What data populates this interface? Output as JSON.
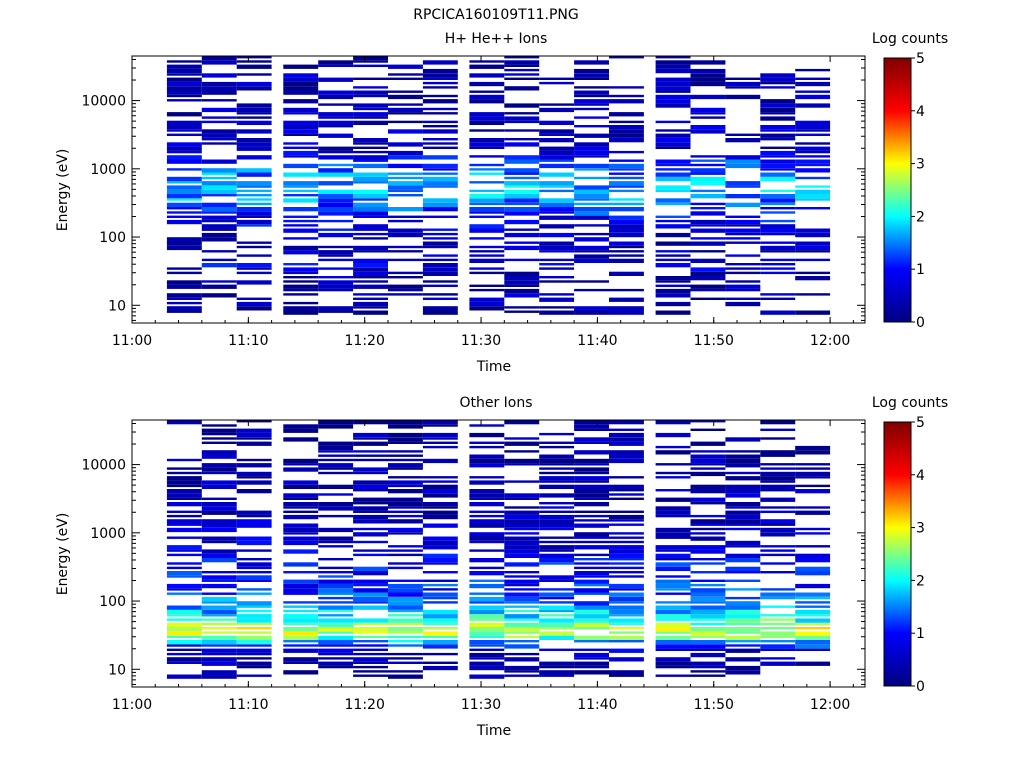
{
  "figure_title": "RPCICA160109T11.PNG",
  "colorbar_label": "Log counts",
  "colorbar_ticks": [
    "0",
    "1",
    "2",
    "3",
    "4",
    "5"
  ],
  "colormap": [
    "#000080",
    "#0000ff",
    "#00ffff",
    "#ffff00",
    "#ff0000",
    "#800000"
  ],
  "time_ticks": [
    "11:00",
    "11:10",
    "11:20",
    "11:30",
    "11:40",
    "11:50",
    "12:00"
  ],
  "chart_data": [
    {
      "type": "heatmap",
      "title": "H+ He++ Ions",
      "xlabel": "Time",
      "ylabel": "Energy (eV)",
      "y_scale": "log",
      "xlim": [
        "11:00",
        "12:03"
      ],
      "ylim": [
        5.5,
        45000
      ],
      "yticks": [
        10,
        100,
        1000,
        10000
      ],
      "ytick_labels": [
        "10",
        "100",
        "1000",
        "10000"
      ],
      "clim": [
        0,
        5
      ],
      "time_bins": [
        "11:03",
        "11:06",
        "11:09",
        "11:13",
        "11:16",
        "11:19",
        "11:22",
        "11:25",
        "11:29",
        "11:32",
        "11:35",
        "11:38",
        "11:41",
        "11:45",
        "11:48",
        "11:51",
        "11:54",
        "11:57"
      ],
      "profile": [
        [
          30000,
          0.3
        ],
        [
          15000,
          0.35
        ],
        [
          8000,
          0.4
        ],
        [
          4000,
          0.45
        ],
        [
          2000,
          0.5
        ],
        [
          1200,
          1.2
        ],
        [
          700,
          1.6
        ],
        [
          450,
          1.7
        ],
        [
          300,
          1.4
        ],
        [
          200,
          1.0
        ],
        [
          130,
          0.7
        ],
        [
          90,
          0.5
        ],
        [
          60,
          0.4
        ],
        [
          40,
          0.8
        ],
        [
          30,
          0.5
        ],
        [
          20,
          0.35
        ],
        [
          12,
          0.3
        ],
        [
          8,
          0.25
        ]
      ],
      "density": 0.55,
      "seed": 11
    },
    {
      "type": "heatmap",
      "title": "Other Ions",
      "xlabel": "Time",
      "ylabel": "Energy (eV)",
      "y_scale": "log",
      "xlim": [
        "11:00",
        "12:03"
      ],
      "ylim": [
        5.5,
        45000
      ],
      "yticks": [
        10,
        100,
        1000,
        10000
      ],
      "ytick_labels": [
        "10",
        "100",
        "1000",
        "10000"
      ],
      "clim": [
        0,
        5
      ],
      "time_bins": [
        "11:03",
        "11:06",
        "11:09",
        "11:13",
        "11:16",
        "11:19",
        "11:22",
        "11:25",
        "11:29",
        "11:32",
        "11:35",
        "11:38",
        "11:41",
        "11:45",
        "11:48",
        "11:51",
        "11:54",
        "11:57"
      ],
      "profile": [
        [
          20000,
          0.3
        ],
        [
          10000,
          0.3
        ],
        [
          5000,
          0.35
        ],
        [
          3000,
          0.4
        ],
        [
          2000,
          0.45
        ],
        [
          1000,
          0.55
        ],
        [
          600,
          0.7
        ],
        [
          350,
          0.9
        ],
        [
          200,
          1.0
        ],
        [
          120,
          1.3
        ],
        [
          80,
          1.6
        ],
        [
          55,
          2.0
        ],
        [
          42,
          2.6
        ],
        [
          36,
          2.9
        ],
        [
          30,
          2.5
        ],
        [
          24,
          1.5
        ],
        [
          18,
          0.5
        ],
        [
          10,
          0.3
        ]
      ],
      "density": 0.6,
      "seed": 29
    }
  ]
}
